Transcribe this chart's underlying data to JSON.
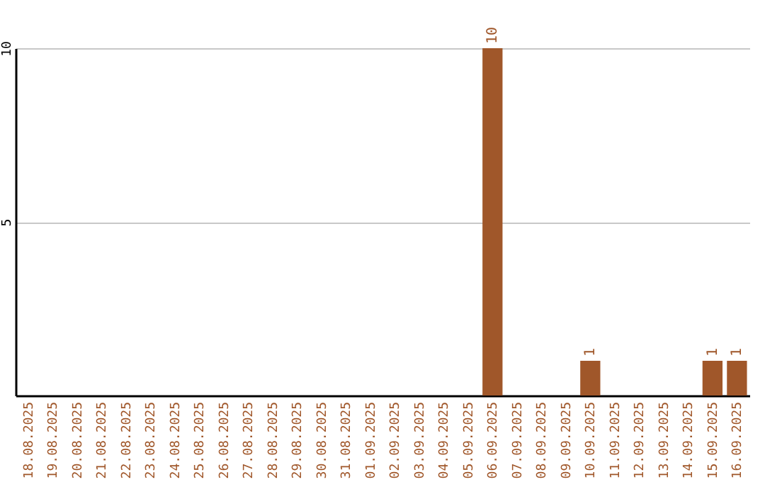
{
  "chart_data": {
    "type": "bar",
    "categories": [
      "18.08.2025",
      "19.08.2025",
      "20.08.2025",
      "21.08.2025",
      "22.08.2025",
      "23.08.2025",
      "24.08.2025",
      "25.08.2025",
      "26.08.2025",
      "27.08.2025",
      "28.08.2025",
      "29.08.2025",
      "30.08.2025",
      "31.08.2025",
      "01.09.2025",
      "02.09.2025",
      "03.09.2025",
      "04.09.2025",
      "05.09.2025",
      "06.09.2025",
      "07.09.2025",
      "08.09.2025",
      "09.09.2025",
      "10.09.2025",
      "11.09.2025",
      "12.09.2025",
      "13.09.2025",
      "14.09.2025",
      "15.09.2025",
      "16.09.2025"
    ],
    "values": [
      0,
      0,
      0,
      0,
      0,
      0,
      0,
      0,
      0,
      0,
      0,
      0,
      0,
      0,
      0,
      0,
      0,
      0,
      0,
      10,
      0,
      0,
      0,
      1,
      0,
      0,
      0,
      0,
      1,
      1
    ],
    "value_labels": [
      null,
      null,
      null,
      null,
      null,
      null,
      null,
      null,
      null,
      null,
      null,
      null,
      null,
      null,
      null,
      null,
      null,
      null,
      null,
      "10",
      null,
      null,
      null,
      "1",
      null,
      null,
      null,
      null,
      "1",
      "1"
    ],
    "color": "#a0572a",
    "ylim": [
      0,
      10
    ],
    "yticks": [
      5,
      10
    ],
    "grid": "y"
  }
}
